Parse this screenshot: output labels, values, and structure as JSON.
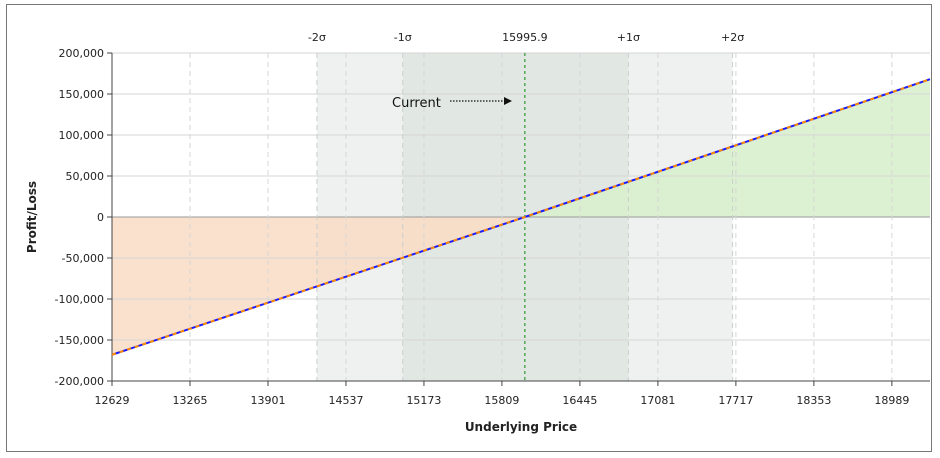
{
  "chart_data": {
    "type": "line",
    "xlabel": "Underlying Price",
    "ylabel": "Profit/Loss",
    "xlim": [
      12629,
      19300
    ],
    "ylim": [
      -200000,
      200000
    ],
    "x_ticks": [
      12629,
      13265,
      13901,
      14537,
      15173,
      15809,
      16445,
      17081,
      17717,
      18353,
      18989
    ],
    "y_ticks": [
      {
        "value": 200000,
        "label": "200,000"
      },
      {
        "value": 150000,
        "label": "150,000"
      },
      {
        "value": 100000,
        "label": "100,000"
      },
      {
        "value": 50000,
        "label": "50,000"
      },
      {
        "value": 0,
        "label": "0"
      },
      {
        "value": -50000,
        "label": "-50,000"
      },
      {
        "value": -100000,
        "label": "-100,000"
      },
      {
        "value": -150000,
        "label": "-150,000"
      },
      {
        "value": -200000,
        "label": "-200,000"
      }
    ],
    "series": [
      {
        "x": [
          12629,
          15995.9,
          19300
        ],
        "y": [
          -168000,
          0,
          168000
        ],
        "color": "#1a1aff",
        "dash_color": "#ff8c00"
      }
    ],
    "current_price": 15995.9,
    "current_label": "15995.9",
    "current_annotation": "Current",
    "sigma_bands": [
      {
        "label": "-2σ",
        "x": 14300
      },
      {
        "label": "-1σ",
        "x": 15000
      },
      {
        "label": "+1σ",
        "x": 16840
      },
      {
        "label": "+2σ",
        "x": 17690
      }
    ],
    "band_ranges": {
      "two_sigma": [
        14300,
        17690
      ],
      "one_sigma": [
        15000,
        16840
      ]
    },
    "grid": true,
    "colors": {
      "loss_fill": "#f9dcc4",
      "profit_fill": "#d8efcc",
      "band_outer": "#eef1ef",
      "band_inner": "#e1e7e3",
      "grid": "#d6d6d6",
      "current_line": "#2e9a2e"
    }
  }
}
